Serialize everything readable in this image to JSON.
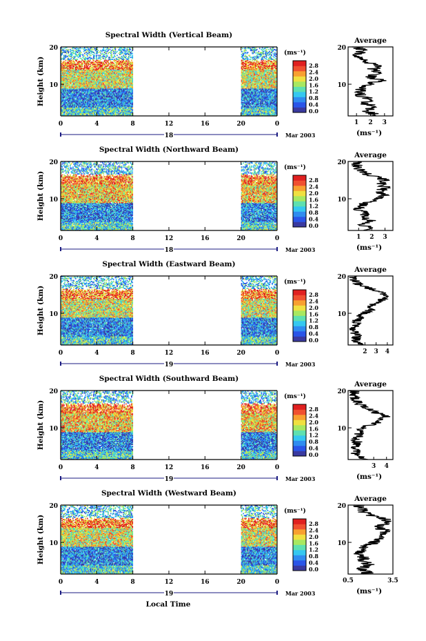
{
  "figure": {
    "bottom_xlabel": "Local Time",
    "colorbar": {
      "unit": "(ms⁻¹)",
      "tick_labels": [
        "2.8",
        "2.4",
        "2.0",
        "1.6",
        "1.2",
        "0.8",
        "0.4",
        "0.0"
      ]
    },
    "colorbar_scale": [
      "#3a3aa0",
      "#2a55e8",
      "#2f8cf0",
      "#35c8f0",
      "#5ee0b0",
      "#a8e860",
      "#f0e040",
      "#f8a030",
      "#f05030",
      "#e02020"
    ]
  },
  "chart_data": [
    {
      "type": "heatmap",
      "title": "Spectral Width (Vertical Beam)",
      "ylabel": "Height (km)",
      "ylim": [
        1.5,
        20
      ],
      "y_ticks": [
        "20",
        "10"
      ],
      "x_ticks": [
        "0",
        "4",
        "8",
        "12",
        "16",
        "20",
        "0"
      ],
      "xlim": [
        0,
        24
      ],
      "date_label": "18",
      "date_suffix": "Mar 2003",
      "data_segments_hours": [
        [
          0,
          8
        ],
        [
          20,
          24
        ]
      ],
      "profile": {
        "title": "Average",
        "xlabel": "(ms⁻¹)",
        "x_ticks": [
          "1",
          "2",
          "3"
        ],
        "x_tick_values": [
          1,
          2,
          3
        ],
        "xlim": [
          0.4,
          3.6
        ],
        "y_ticks": [
          "20",
          "10"
        ],
        "heights_km": [
          2,
          3,
          4,
          5,
          6,
          7,
          8,
          9,
          10,
          11,
          12,
          13,
          14,
          15,
          16,
          17,
          18,
          19,
          20
        ],
        "values": [
          2.2,
          1.7,
          2.3,
          1.5,
          1.9,
          1.3,
          1.2,
          1.4,
          1.8,
          2.8,
          1.9,
          2.5,
          2.1,
          2.7,
          1.6,
          1.3,
          1.1,
          1.4,
          1.0
        ]
      }
    },
    {
      "type": "heatmap",
      "title": "Spectral Width (Northward Beam)",
      "ylabel": "Height (km)",
      "ylim": [
        1.5,
        20
      ],
      "y_ticks": [
        "20",
        "10"
      ],
      "x_ticks": [
        "0",
        "4",
        "8",
        "12",
        "16",
        "20",
        "0"
      ],
      "xlim": [
        0,
        24
      ],
      "date_label": "18",
      "date_suffix": "Mar 2003",
      "data_segments_hours": [
        [
          0,
          8
        ],
        [
          20,
          24
        ]
      ],
      "profile": {
        "title": "Average",
        "xlabel": "(ms⁻¹)",
        "x_ticks": [
          "1",
          "2",
          "3"
        ],
        "x_tick_values": [
          1,
          2,
          3
        ],
        "xlim": [
          0.2,
          3.6
        ],
        "y_ticks": [
          "20",
          "10"
        ],
        "heights_km": [
          2,
          3,
          4,
          5,
          6,
          7,
          8,
          9,
          10,
          11,
          12,
          13,
          14,
          15,
          16,
          17,
          18,
          19,
          20
        ],
        "values": [
          1.9,
          1.4,
          2.0,
          1.2,
          1.5,
          1.0,
          1.1,
          1.6,
          2.4,
          2.9,
          2.6,
          3.0,
          2.8,
          3.1,
          2.2,
          1.4,
          1.0,
          0.9,
          0.8
        ]
      }
    },
    {
      "type": "heatmap",
      "title": "Spectral Width (Eastward Beam)",
      "ylabel": "Height (km)",
      "ylim": [
        1.5,
        20
      ],
      "y_ticks": [
        "20",
        "10"
      ],
      "x_ticks": [
        "0",
        "4",
        "8",
        "12",
        "16",
        "20",
        "0"
      ],
      "xlim": [
        0,
        24
      ],
      "date_label": "19",
      "date_suffix": "Mar 2003",
      "data_segments_hours": [
        [
          0,
          8
        ],
        [
          20,
          24
        ]
      ],
      "profile": {
        "title": "Average",
        "xlabel": "",
        "x_ticks": [
          "2",
          "3",
          "4"
        ],
        "x_tick_values": [
          2,
          3,
          4
        ],
        "xlim": [
          0.5,
          4.5
        ],
        "y_ticks": [
          "20",
          "10"
        ],
        "heights_km": [
          2,
          3,
          4,
          5,
          6,
          7,
          8,
          9,
          10,
          11,
          12,
          13,
          14,
          15,
          16,
          17,
          18,
          19,
          20
        ],
        "values": [
          1.4,
          1.2,
          1.3,
          1.0,
          1.1,
          1.2,
          1.3,
          1.5,
          1.9,
          2.6,
          2.4,
          3.2,
          3.6,
          3.9,
          3.0,
          2.1,
          1.3,
          1.0,
          0.9
        ]
      }
    },
    {
      "type": "heatmap",
      "title": "Spectral Width (Southward Beam)",
      "ylabel": "Height (km)",
      "ylim": [
        1.5,
        20
      ],
      "y_ticks": [
        "20",
        "10"
      ],
      "x_ticks": [
        "0",
        "4",
        "8",
        "12",
        "16",
        "20",
        "0"
      ],
      "xlim": [
        0,
        24
      ],
      "date_label": "19",
      "date_suffix": "Mar 2003",
      "data_segments_hours": [
        [
          0,
          8
        ],
        [
          20,
          24
        ]
      ],
      "profile": {
        "title": "Average",
        "xlabel": "(ms⁻¹)",
        "x_ticks": [
          "3",
          "4"
        ],
        "x_tick_values": [
          3,
          4
        ],
        "xlim": [
          1.0,
          4.5
        ],
        "y_ticks": [
          "20",
          "10"
        ],
        "heights_km": [
          2,
          3,
          4,
          5,
          6,
          7,
          8,
          9,
          10,
          11,
          12,
          13,
          14,
          15,
          16,
          17,
          18,
          19,
          20
        ],
        "values": [
          2.2,
          1.6,
          1.9,
          1.5,
          1.7,
          1.6,
          1.8,
          1.9,
          2.3,
          2.9,
          3.6,
          4.1,
          3.2,
          2.5,
          2.0,
          1.8,
          1.6,
          1.5,
          1.4
        ]
      }
    },
    {
      "type": "heatmap",
      "title": "Spectral Width (Westward Beam)",
      "ylabel": "Height (km)",
      "ylim": [
        1.5,
        20
      ],
      "y_ticks": [
        "20",
        "10"
      ],
      "x_ticks": [
        "0",
        "4",
        "8",
        "12",
        "16",
        "20",
        "0"
      ],
      "xlim": [
        0,
        24
      ],
      "date_label": "19",
      "date_suffix": "Mar 2003",
      "data_segments_hours": [
        [
          0,
          8
        ],
        [
          20,
          24
        ]
      ],
      "profile": {
        "title": "Average",
        "xlabel": "(ms⁻¹)",
        "x_ticks": [
          "0.5",
          "3.5"
        ],
        "x_tick_values": [
          0.5,
          3.5
        ],
        "xlim": [
          0.5,
          3.5
        ],
        "y_ticks": [
          "20",
          "10"
        ],
        "heights_km": [
          2,
          3,
          4,
          5,
          6,
          7,
          8,
          9,
          10,
          11,
          12,
          13,
          14,
          15,
          16,
          17,
          18,
          19,
          20
        ],
        "values": [
          1.8,
          1.3,
          2.0,
          1.4,
          1.6,
          1.2,
          1.3,
          1.7,
          2.2,
          2.7,
          2.5,
          3.0,
          2.6,
          2.9,
          3.1,
          2.3,
          1.6,
          1.4,
          1.2
        ]
      }
    }
  ]
}
